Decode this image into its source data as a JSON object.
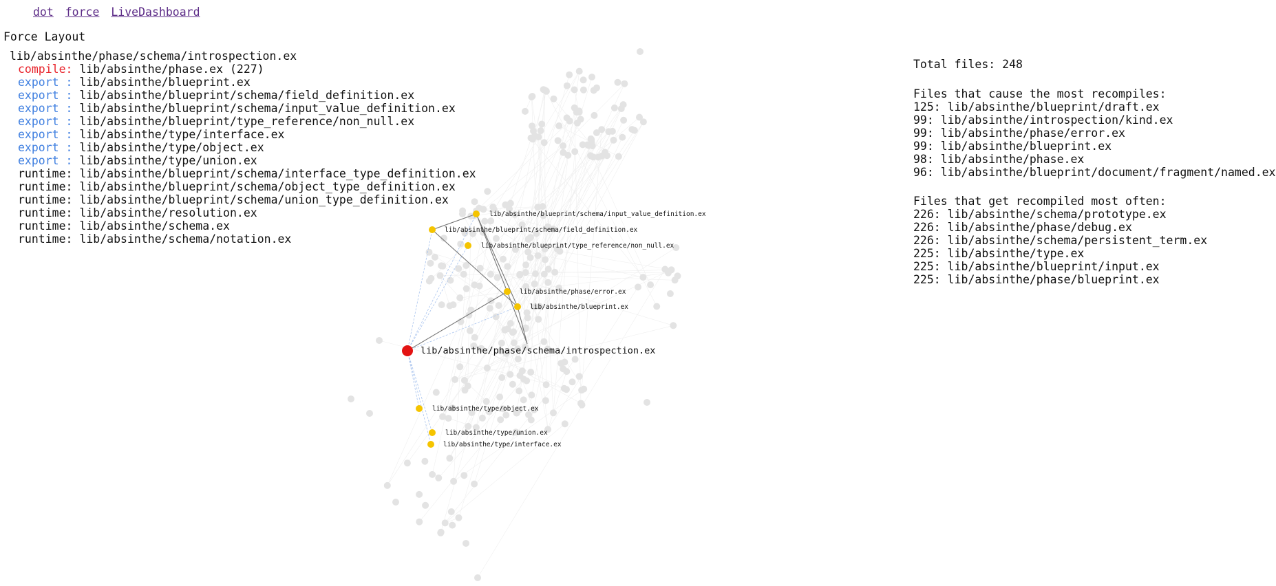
{
  "nav": {
    "links": [
      "dot",
      "force",
      "LiveDashboard"
    ]
  },
  "page_title": "Force Layout",
  "selected": {
    "file": "lib/absinthe/phase/schema/introspection.ex",
    "dependencies": [
      {
        "kind": "compile:",
        "file": "lib/absinthe/phase.ex (227)"
      },
      {
        "kind": "export :",
        "file": "lib/absinthe/blueprint.ex"
      },
      {
        "kind": "export :",
        "file": "lib/absinthe/blueprint/schema/field_definition.ex"
      },
      {
        "kind": "export :",
        "file": "lib/absinthe/blueprint/schema/input_value_definition.ex"
      },
      {
        "kind": "export :",
        "file": "lib/absinthe/blueprint/type_reference/non_null.ex"
      },
      {
        "kind": "export :",
        "file": "lib/absinthe/type/interface.ex"
      },
      {
        "kind": "export :",
        "file": "lib/absinthe/type/object.ex"
      },
      {
        "kind": "export :",
        "file": "lib/absinthe/type/union.ex"
      },
      {
        "kind": "runtime:",
        "file": "lib/absinthe/blueprint/schema/interface_type_definition.ex"
      },
      {
        "kind": "runtime:",
        "file": "lib/absinthe/blueprint/schema/object_type_definition.ex"
      },
      {
        "kind": "runtime:",
        "file": "lib/absinthe/blueprint/schema/union_type_definition.ex"
      },
      {
        "kind": "runtime:",
        "file": "lib/absinthe/resolution.ex"
      },
      {
        "kind": "runtime:",
        "file": "lib/absinthe/schema.ex"
      },
      {
        "kind": "runtime:",
        "file": "lib/absinthe/schema/notation.ex"
      }
    ]
  },
  "stats": {
    "total_files": "Total files: 248",
    "most_recompiles_heading": "Files that cause the most recompiles:",
    "most_recompiles": [
      "125: lib/absinthe/blueprint/draft.ex",
      "99: lib/absinthe/introspection/kind.ex",
      "99: lib/absinthe/phase/error.ex",
      "99: lib/absinthe/blueprint.ex",
      "98: lib/absinthe/phase.ex",
      "96: lib/absinthe/blueprint/document/fragment/named.ex"
    ],
    "most_recompiled_heading": "Files that get recompiled most often:",
    "most_recompiled": [
      "226: lib/absinthe/schema/prototype.ex",
      "226: lib/absinthe/phase/debug.ex",
      "226: lib/absinthe/schema/persistent_term.ex",
      "225: lib/absinthe/type.ex",
      "225: lib/absinthe/blueprint/input.ex",
      "225: lib/absinthe/phase/blueprint.ex"
    ]
  },
  "graph": {
    "root_label": "lib/absinthe/phase/schema/introspection.ex",
    "highlighted": [
      {
        "id": "input_value_definition",
        "label": "lib/absinthe/blueprint/schema/input_value_definition.ex",
        "edge": "export"
      },
      {
        "id": "field_definition",
        "label": "lib/absinthe/blueprint/schema/field_definition.ex",
        "edge": "export"
      },
      {
        "id": "non_null",
        "label": "lib/absinthe/blueprint/type_reference/non_null.ex",
        "edge": "export"
      },
      {
        "id": "phase_error",
        "label": "lib/absinthe/phase/error.ex",
        "edge": "compile"
      },
      {
        "id": "blueprint",
        "label": "lib/absinthe/blueprint.ex",
        "edge": "export"
      },
      {
        "id": "type_object",
        "label": "lib/absinthe/type/object.ex",
        "edge": "export"
      },
      {
        "id": "type_union",
        "label": "lib/absinthe/type/union.ex",
        "edge": "export"
      },
      {
        "id": "type_interface",
        "label": "lib/absinthe/type/interface.ex",
        "edge": "export"
      }
    ],
    "colors": {
      "root": "#e31313",
      "highlight": "#f5c400",
      "background": "#e3e3e3",
      "compile": "#e8222a",
      "export": "#3f7fe0"
    }
  }
}
